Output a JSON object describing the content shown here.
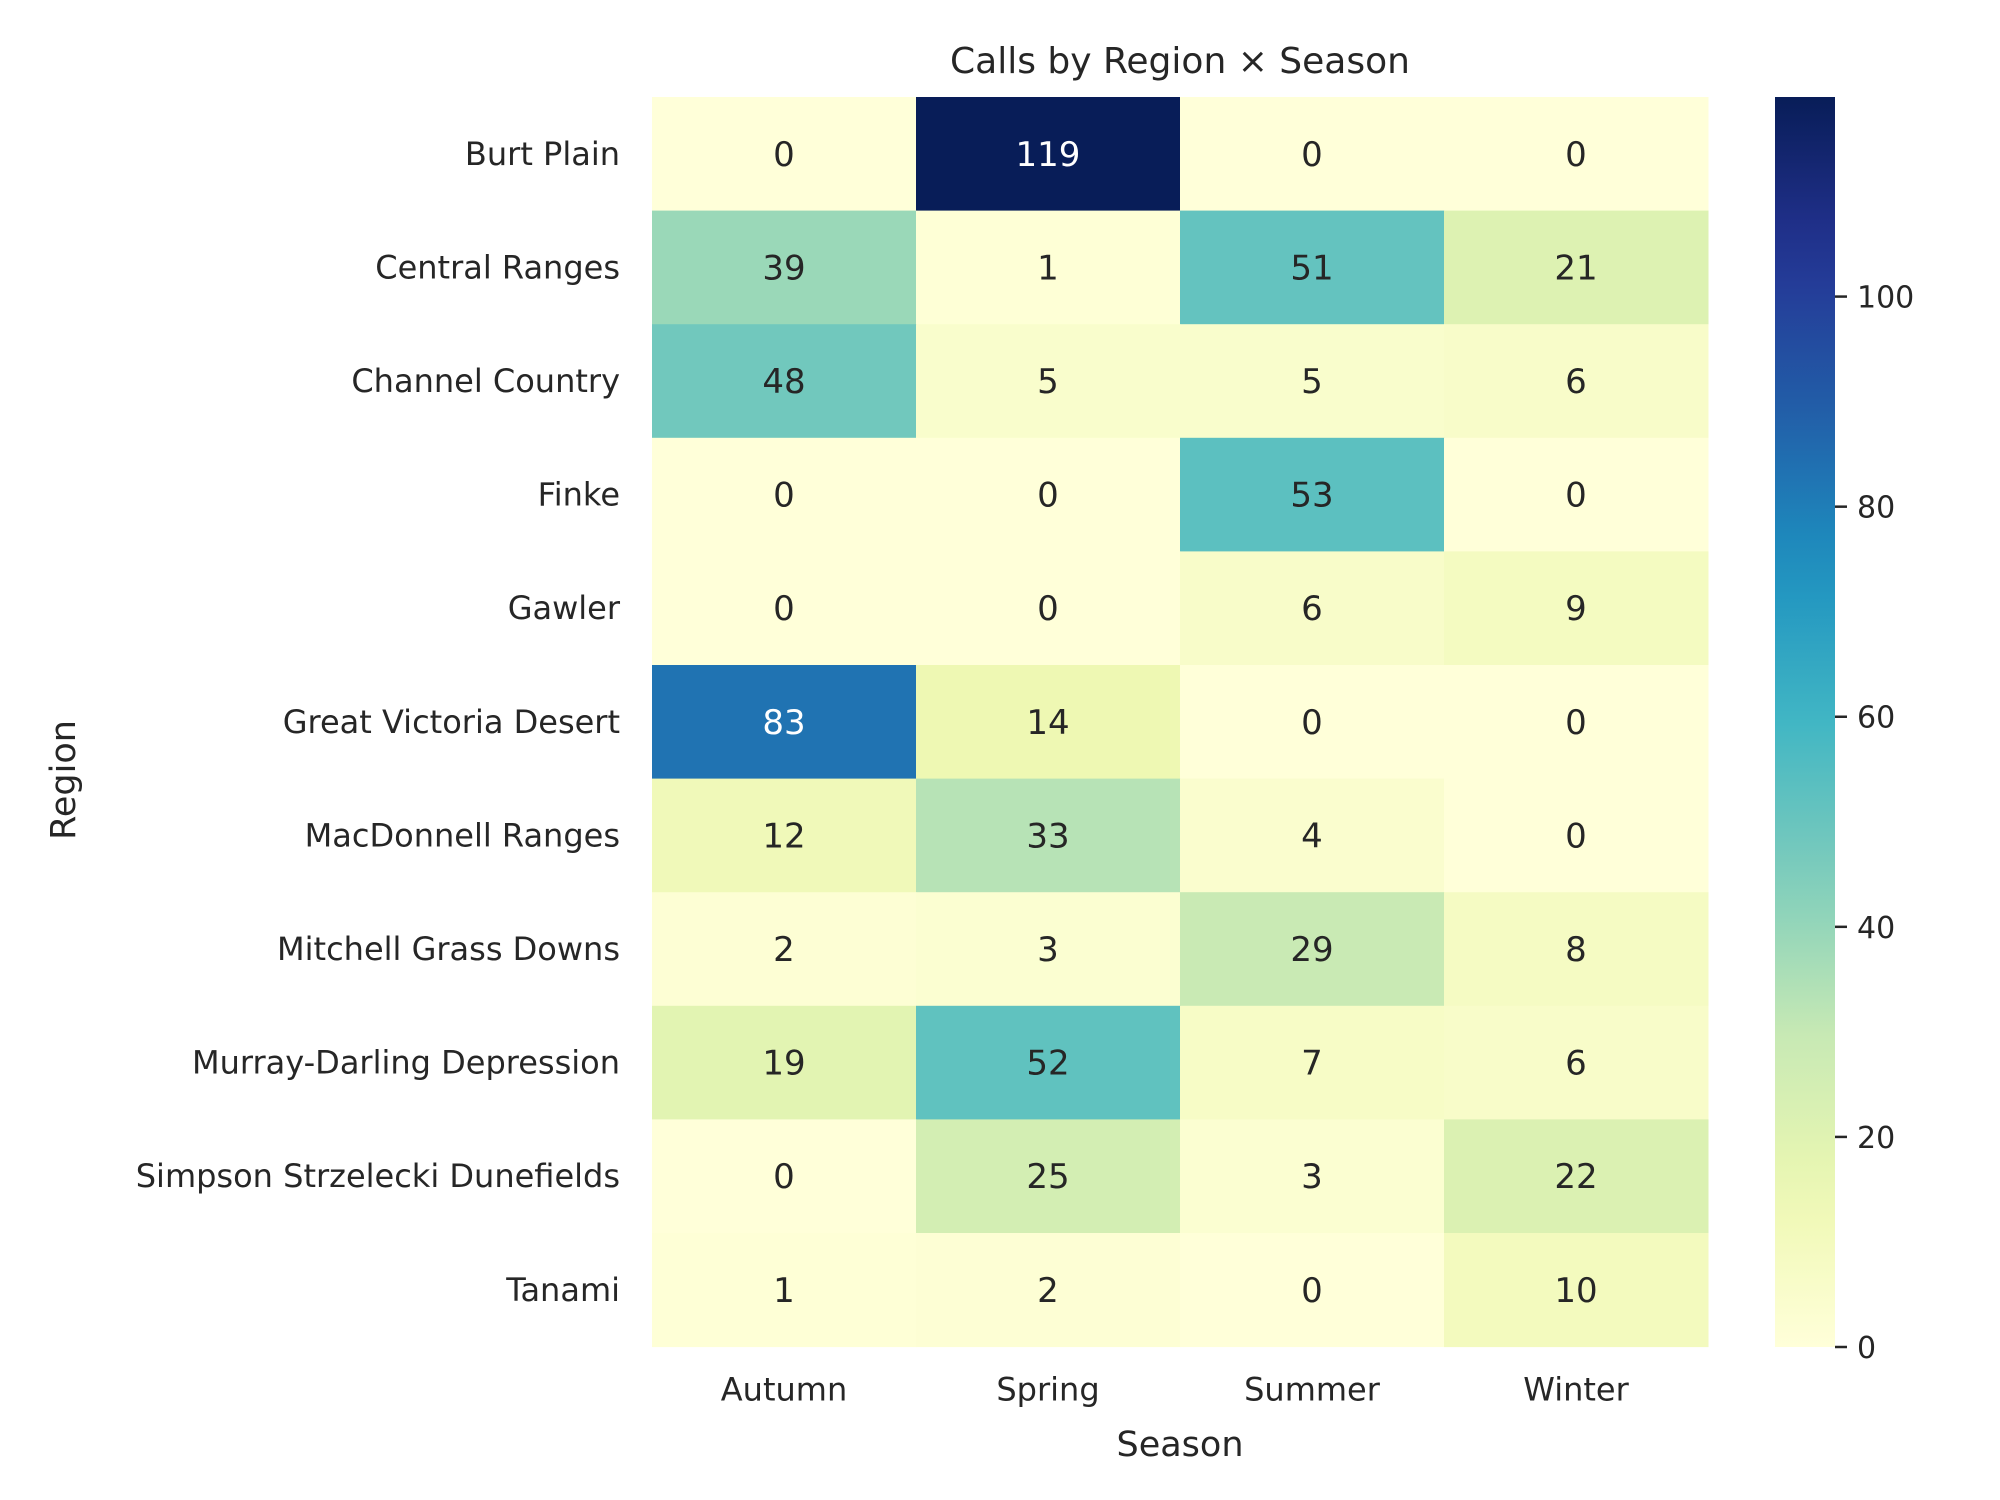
{
  "chart_data": {
    "type": "heatmap",
    "title": "Calls by Region × Season",
    "xlabel": "Season",
    "ylabel": "Region",
    "x_categories": [
      "Autumn",
      "Spring",
      "Summer",
      "Winter"
    ],
    "y_categories": [
      "Burt Plain",
      "Central Ranges",
      "Channel Country",
      "Finke",
      "Gawler",
      "Great Victoria Desert",
      "MacDonnell Ranges",
      "Mitchell Grass Downs",
      "Murray-Darling Depression",
      "Simpson Strzelecki Dunefields",
      "Tanami"
    ],
    "values": [
      [
        0,
        119,
        0,
        0
      ],
      [
        39,
        1,
        51,
        21
      ],
      [
        48,
        5,
        5,
        6
      ],
      [
        0,
        0,
        53,
        0
      ],
      [
        0,
        0,
        6,
        9
      ],
      [
        83,
        14,
        0,
        0
      ],
      [
        12,
        33,
        4,
        0
      ],
      [
        2,
        3,
        29,
        8
      ],
      [
        19,
        52,
        7,
        6
      ],
      [
        0,
        25,
        3,
        22
      ],
      [
        1,
        2,
        0,
        10
      ]
    ],
    "colormap": "YlGnBu",
    "vmin": 0,
    "vmax": 119,
    "colorbar_ticks": [
      0,
      20,
      40,
      60,
      80,
      100
    ],
    "annotations": true,
    "grid": false
  }
}
